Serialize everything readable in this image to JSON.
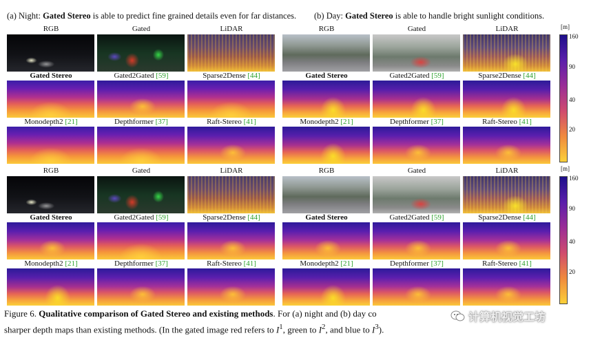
{
  "panels": {
    "a_title_prefix": "(a) Night: ",
    "a_title_bold": "Gated Stereo",
    "a_title_rest": " is able to predict fine grained details even for far distances.",
    "b_title_prefix": "(b) Day: ",
    "b_title_bold": "Gated Stereo",
    "b_title_rest": " is able to handle bright sunlight conditions."
  },
  "labels": {
    "rgb": "RGB",
    "gated": "Gated",
    "lidar": "LiDAR",
    "gated_stereo": "Gated Stereo",
    "gated2gated": "Gated2Gated",
    "gated2gated_ref": "[59]",
    "sparse2dense": "Sparse2Dense",
    "sparse2dense_ref": "[44]",
    "monodepth2": "Monodepth2",
    "monodepth2_ref": "[21]",
    "depthformer": "Depthformer",
    "depthformer_ref": "[37]",
    "raftstereo": "Raft-Stereo",
    "raftstereo_ref": "[41]"
  },
  "colorbar": {
    "unit": "[m]",
    "ticks": [
      "160",
      "90",
      "40",
      "20"
    ]
  },
  "caption": {
    "figure": "Figure 6.",
    "bold": "Qualitative comparison of Gated Stereo and existing methods",
    "line1_rest": ". For (a) night and (b) day co",
    "line2_a": "sharper depth maps than existing methods. (In the gated image red refers to ",
    "I": "I",
    "sup1": "1",
    "line2_b": ", green to ",
    "sup2": "2",
    "line2_c": ", and blue to ",
    "sup3": "3",
    "line2_d": ")."
  },
  "watermark": {
    "text": "计算机视觉工坊"
  }
}
